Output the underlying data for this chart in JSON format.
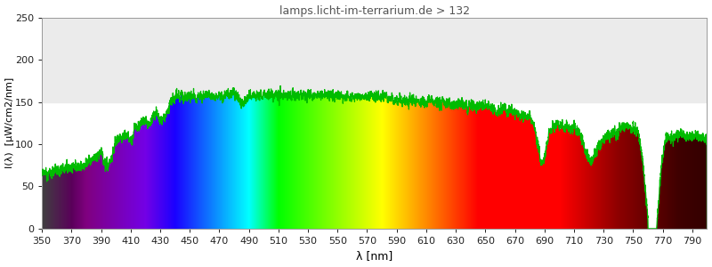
{
  "title": "lamps.licht-im-terrarium.de > 132",
  "xlabel": "λ [nm]",
  "ylabel": "I(λ)  [µW/cm2/nm]",
  "xlim": [
    350,
    800
  ],
  "ylim": [
    0,
    250
  ],
  "yticks": [
    0,
    50,
    100,
    150,
    200,
    250
  ],
  "xticks": [
    350,
    370,
    390,
    410,
    430,
    450,
    470,
    490,
    510,
    530,
    550,
    570,
    590,
    610,
    630,
    650,
    670,
    690,
    710,
    730,
    750,
    770,
    790
  ],
  "gray_band_y": 150,
  "gray_band_color": "#ebebeb",
  "title_color": "#555555",
  "title_fontsize": 9,
  "line_color": "#00bb00",
  "line_width": 0.9,
  "fig_bg": "#ffffff",
  "ax_bg": "#ffffff",
  "ylabel_fontsize": 8,
  "xlabel_fontsize": 9,
  "tick_fontsize": 8
}
